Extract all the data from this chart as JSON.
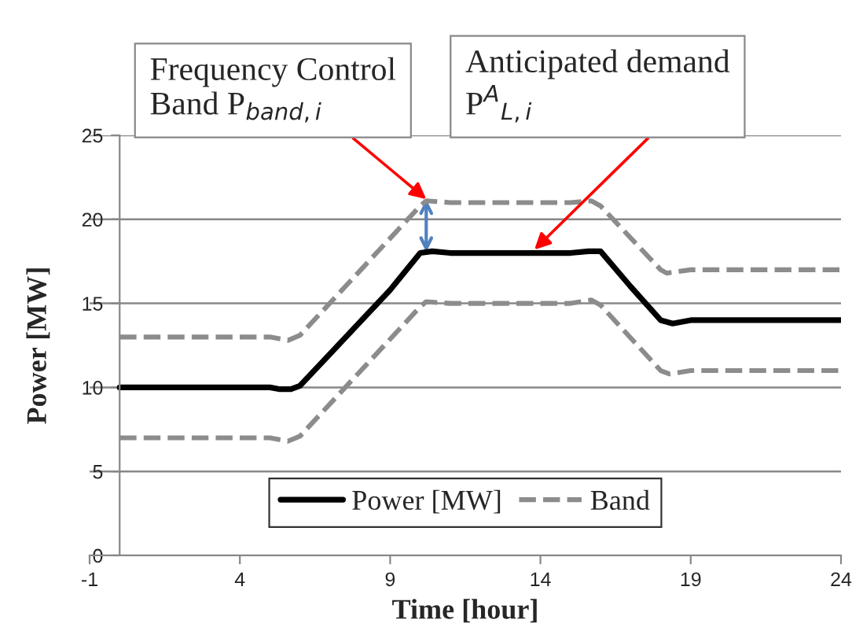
{
  "chart_data": {
    "type": "line",
    "xlabel": "Time [hour]",
    "ylabel": "Power [MW]",
    "xlim": [
      -1,
      24
    ],
    "xticks": [
      -1,
      4,
      9,
      14,
      19,
      24
    ],
    "ylim": [
      0,
      25
    ],
    "yticks": [
      0,
      5,
      10,
      15,
      20,
      25
    ],
    "grid": "y",
    "legend": "bottom",
    "marker": "none",
    "series": [
      {
        "name": "Power [MW]",
        "color": "#000000",
        "line_style": "solid",
        "x": [
          0,
          5,
          5.3,
          5.7,
          6,
          7,
          9,
          10,
          10.4,
          11,
          15,
          15.6,
          16,
          17,
          18,
          18.4,
          19,
          24
        ],
        "values": [
          10,
          10,
          9.9,
          9.9,
          10.1,
          12,
          15.8,
          18,
          18.1,
          18,
          18,
          18.1,
          18.1,
          16,
          14,
          13.8,
          14,
          14
        ]
      },
      {
        "name": "Band",
        "color": "#8c8c8c",
        "line_style": "dashed",
        "x": [
          0,
          5,
          5.6,
          6,
          10,
          10.2,
          11,
          15,
          15.7,
          16,
          18,
          18.2,
          19,
          24
        ],
        "values": [
          13,
          13,
          12.8,
          13.1,
          20.8,
          21.1,
          21,
          21,
          21.1,
          20.8,
          17,
          16.8,
          17,
          17
        ]
      },
      {
        "color": "#8c8c8c",
        "line_style": "dashed",
        "x": [
          0,
          5,
          5.6,
          6,
          10,
          10.2,
          11,
          15,
          15.7,
          16,
          18,
          18.3,
          19,
          24
        ],
        "values": [
          7,
          7,
          6.8,
          7.1,
          14.8,
          15.1,
          15,
          15,
          15.2,
          14.9,
          11,
          10.8,
          11,
          11
        ]
      }
    ],
    "annotations": [
      {
        "text": "Frequency Control\nBand P$_{band,i}$",
        "x": 10.2,
        "y": 21.2
      },
      {
        "text": "Anticipated demand\nP$^{A}$$_{L,i}$",
        "x": 13.8,
        "y": 18.2
      }
    ]
  }
}
